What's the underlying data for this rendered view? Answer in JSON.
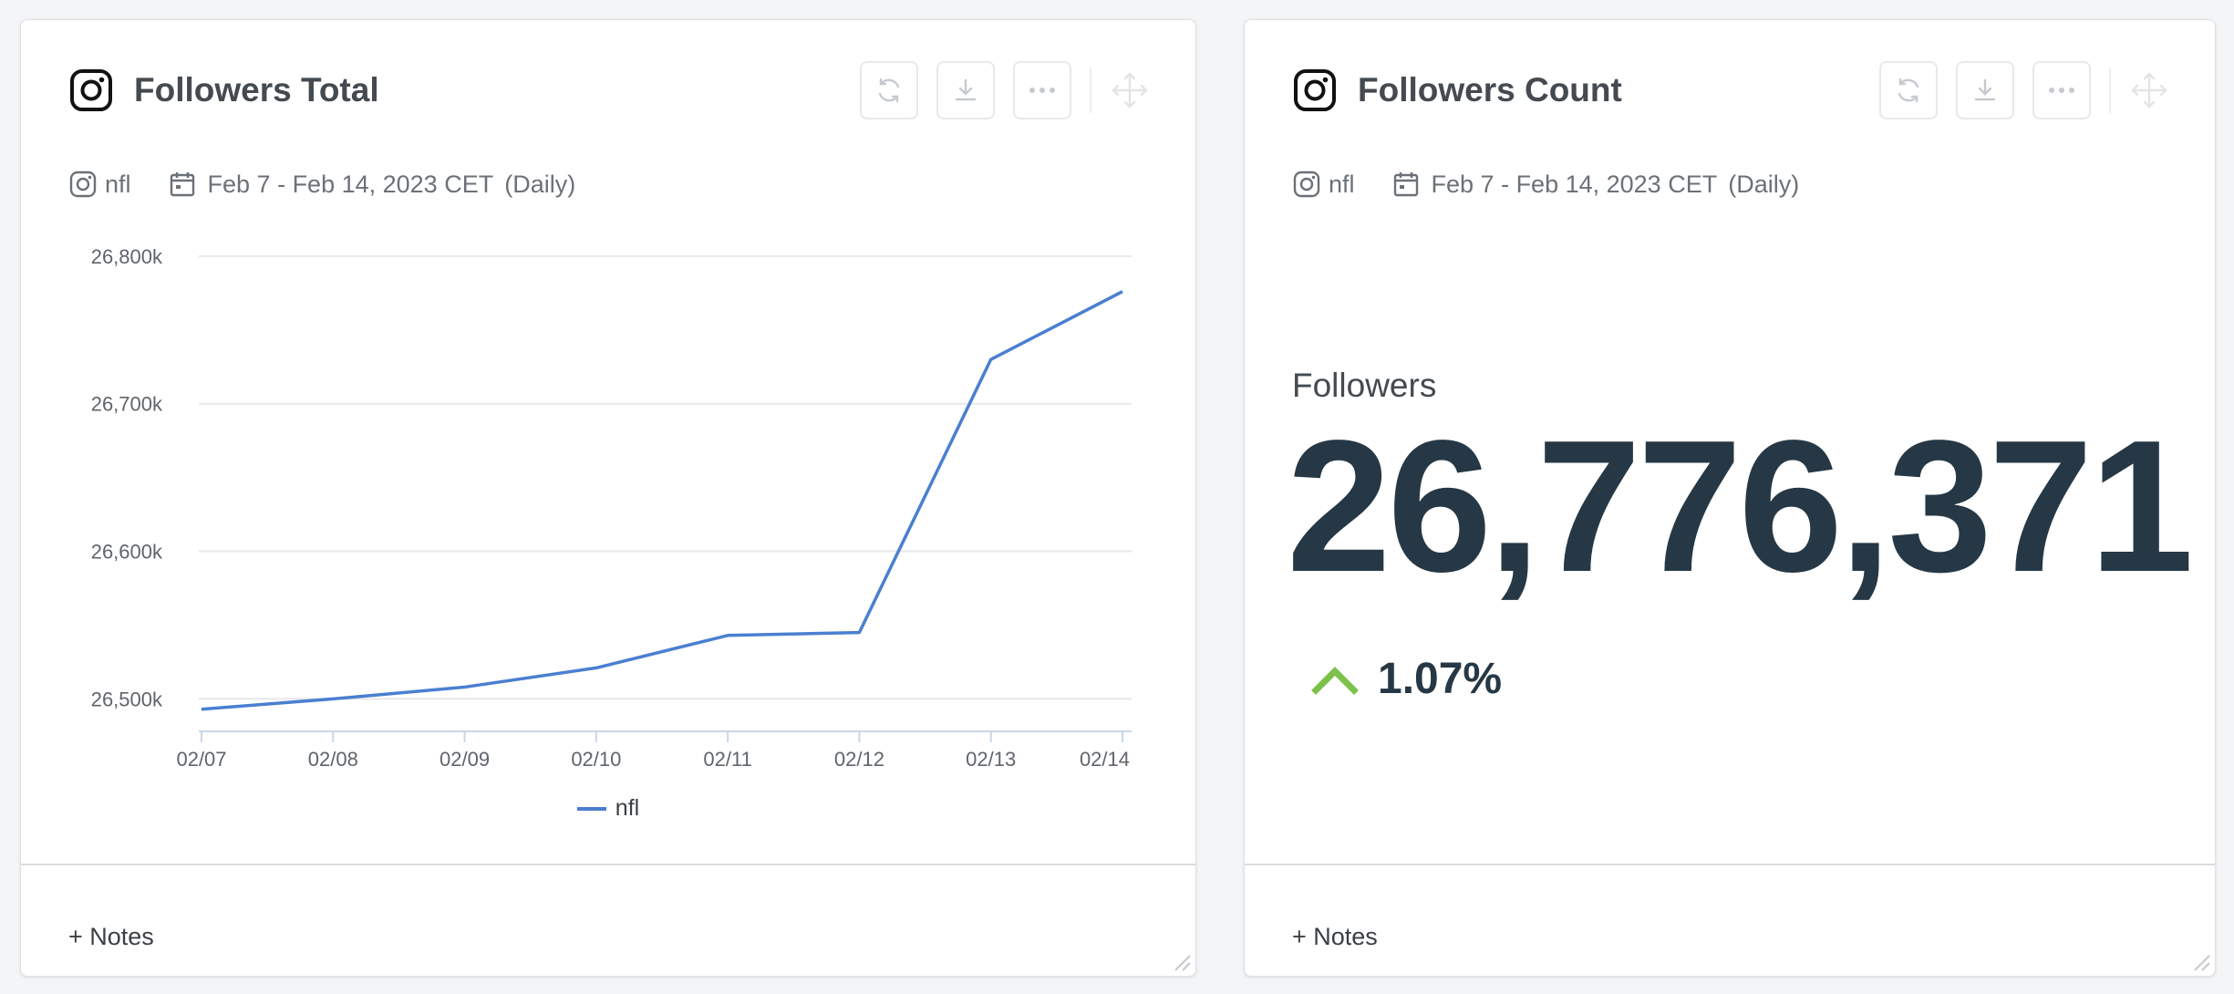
{
  "colors": {
    "series": "#4a7fd1",
    "metric_text": "#263845",
    "positive": "#7cc24a"
  },
  "cards": {
    "followers_total": {
      "title": "Followers Total",
      "icon": "instagram-icon",
      "account": "nfl",
      "date_range": "Feb 7 - Feb 14, 2023 CET",
      "granularity": "(Daily)",
      "legend": "nfl",
      "notes_label": "+ Notes"
    },
    "followers_count": {
      "title": "Followers Count",
      "icon": "instagram-icon",
      "account": "nfl",
      "date_range": "Feb 7 - Feb 14, 2023 CET",
      "granularity": "(Daily)",
      "metric_label": "Followers",
      "metric_value": "26,776,371",
      "change": "1.07%",
      "change_direction": "up",
      "notes_label": "+ Notes"
    }
  },
  "chart_data": {
    "type": "line",
    "title": "Followers Total",
    "xlabel": "",
    "ylabel": "",
    "categories": [
      "02/07",
      "02/08",
      "02/09",
      "02/10",
      "02/11",
      "02/12",
      "02/13",
      "02/14"
    ],
    "series": [
      {
        "name": "nfl",
        "values": [
          26493,
          26500,
          26508,
          26521,
          26543,
          26545,
          26730,
          26776
        ]
      }
    ],
    "ylim": [
      26478,
      26803
    ],
    "yticks": [
      26500,
      26600,
      26700,
      26800
    ],
    "ytick_labels": [
      "26,500k",
      "26,600k",
      "26,700k",
      "26,800k"
    ],
    "grid": true,
    "legend_position": "bottom-center"
  }
}
